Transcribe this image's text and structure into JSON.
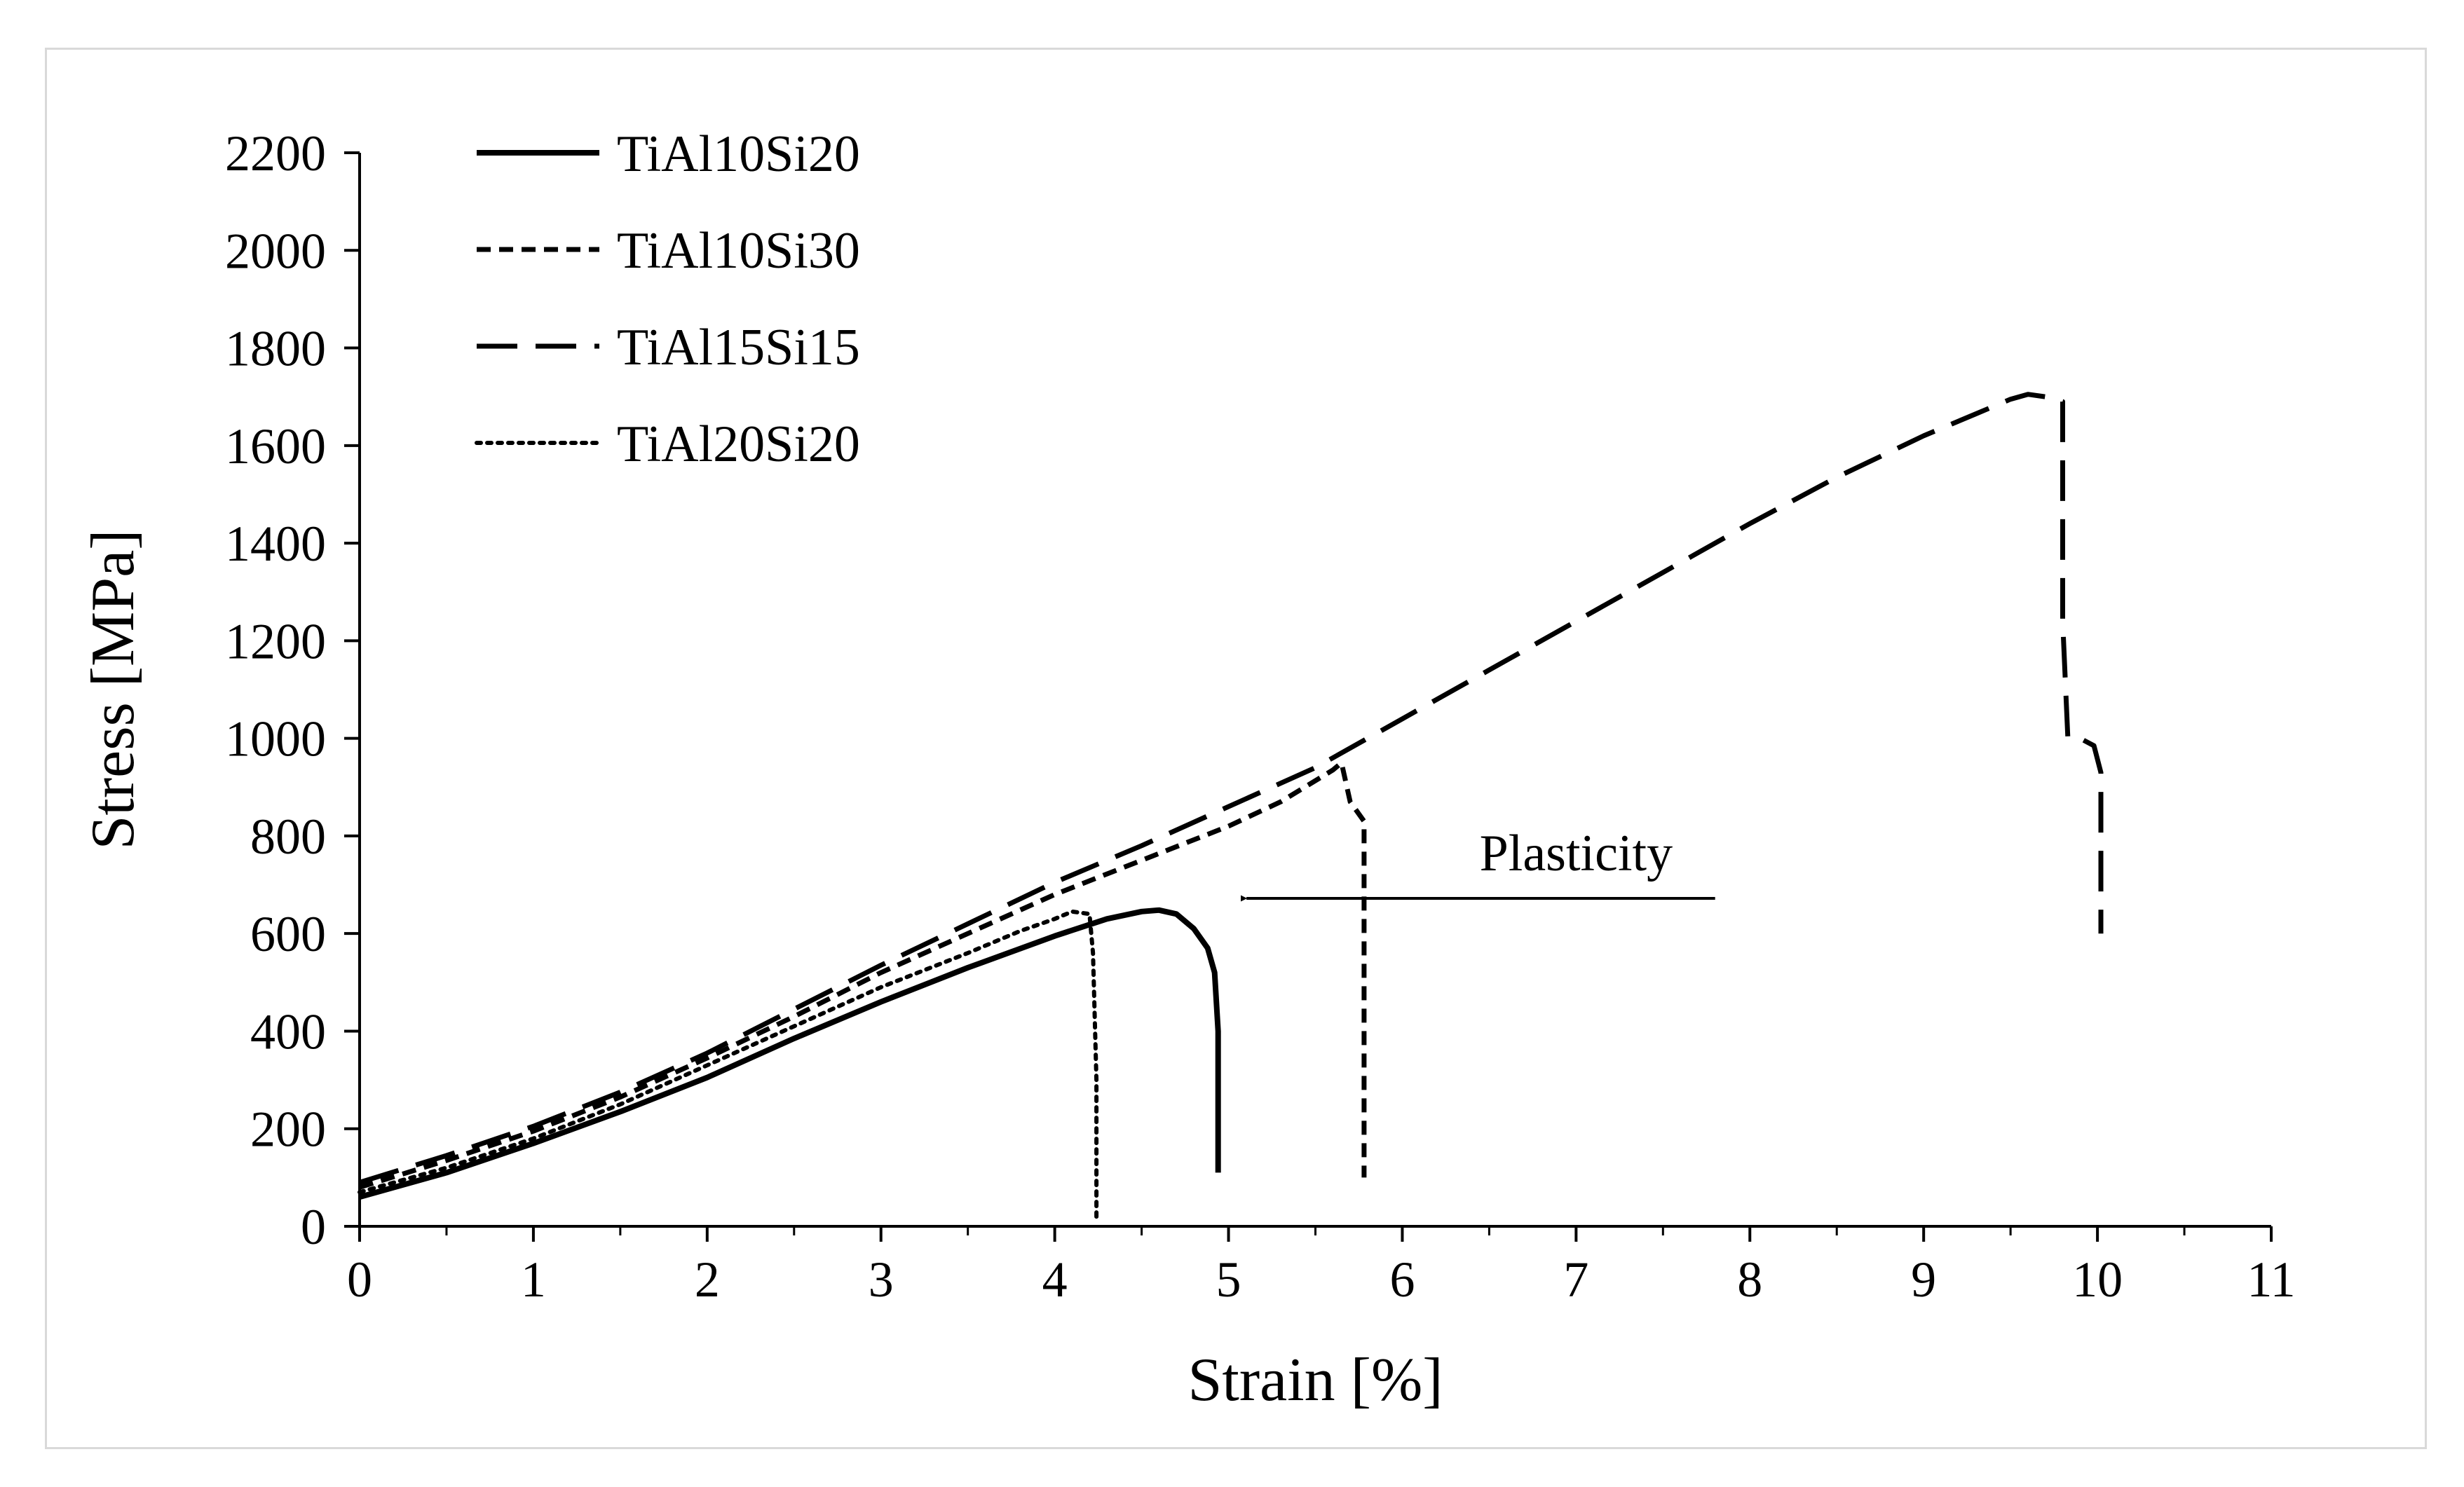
{
  "chart_data": {
    "type": "line",
    "title": "",
    "xlabel": "Strain [%]",
    "ylabel": "Stress [MPa]",
    "xlim": [
      0,
      11
    ],
    "ylim": [
      0,
      2200
    ],
    "xticks": [
      0,
      1,
      2,
      3,
      4,
      5,
      6,
      7,
      8,
      9,
      10,
      11
    ],
    "yticks": [
      0,
      200,
      400,
      600,
      800,
      1000,
      1200,
      1400,
      1600,
      1800,
      2000,
      2200
    ],
    "grid": false,
    "legend_position": "top-left",
    "series": [
      {
        "name": "TiAl10Si20",
        "style": "solid",
        "x": [
          0,
          0.5,
          1.0,
          1.5,
          2.0,
          2.5,
          3.0,
          3.5,
          4.0,
          4.3,
          4.5,
          4.6,
          4.7,
          4.8,
          4.88,
          4.92,
          4.94,
          4.94
        ],
        "y": [
          60,
          110,
          170,
          235,
          305,
          385,
          460,
          530,
          595,
          630,
          645,
          648,
          640,
          610,
          570,
          520,
          400,
          110
        ]
      },
      {
        "name": "TiAl10Si30",
        "style": "dashed",
        "x": [
          0,
          0.5,
          1.0,
          1.5,
          2.0,
          2.5,
          3.0,
          3.5,
          4.0,
          4.5,
          5.0,
          5.3,
          5.6,
          5.65,
          5.7,
          5.78,
          5.78
        ],
        "y": [
          80,
          135,
          195,
          265,
          345,
          430,
          520,
          600,
          680,
          750,
          820,
          870,
          935,
          950,
          870,
          830,
          100
        ]
      },
      {
        "name": "TiAl15Si15",
        "style": "long-dash",
        "x": [
          0,
          0.5,
          1.0,
          1.5,
          2.0,
          2.5,
          3.0,
          3.5,
          4.0,
          4.5,
          5.0,
          5.5,
          6.0,
          6.5,
          7.0,
          7.5,
          8.0,
          8.5,
          9.0,
          9.3,
          9.5,
          9.6,
          9.7,
          9.8,
          9.8,
          9.83,
          9.9,
          9.98,
          10.02,
          10.02
        ],
        "y": [
          90,
          145,
          205,
          275,
          355,
          445,
          535,
          620,
          705,
          780,
          860,
          940,
          1040,
          1140,
          1240,
          1340,
          1440,
          1535,
          1620,
          1665,
          1695,
          1705,
          1700,
          1690,
          1240,
          1000,
          1000,
          985,
          930,
          600
        ]
      },
      {
        "name": "TiAl20Si20",
        "style": "dotted",
        "x": [
          0,
          0.5,
          1.0,
          1.5,
          2.0,
          2.5,
          3.0,
          3.5,
          3.8,
          4.0,
          4.1,
          4.2,
          4.22,
          4.24,
          4.24
        ],
        "y": [
          70,
          120,
          180,
          250,
          330,
          410,
          490,
          560,
          605,
          630,
          645,
          640,
          560,
          300,
          20
        ]
      }
    ],
    "annotations": [
      {
        "text": "Plasticity",
        "arrow_from": [
          7.8,
          672
        ],
        "arrow_to": [
          4.95,
          672
        ]
      }
    ]
  }
}
